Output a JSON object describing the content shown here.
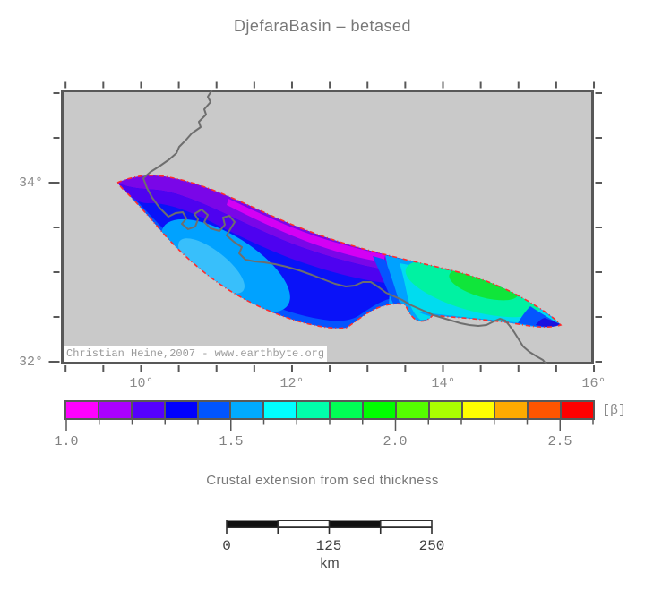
{
  "title": "DjefaraBasin – betased",
  "map": {
    "background": "#c9c9c9",
    "frame_color": "#585858",
    "coast_color": "#6e6e6e",
    "outline_color": "#ff2d2d",
    "x_tick_labels": [
      "10°",
      "12°",
      "14°",
      "16°"
    ],
    "y_tick_labels": [
      "34°",
      "32°"
    ],
    "watermark": "Christian Heine,2007 - www.earthbyte.org",
    "zone_colors": {
      "magenta": "#d400f4",
      "purple": "#7a06e8",
      "violet": "#4e02f0",
      "blue": "#0a12f8",
      "royal": "#0455ff",
      "sky": "#00a2ff",
      "sky_light": "#38bffb",
      "cyan": "#00dcef",
      "spring": "#00f2a2",
      "green": "#10e53a",
      "tip_blue": "#1a10e0"
    }
  },
  "colorbar": {
    "unit": "[β]",
    "labels": [
      "1.0",
      "1.5",
      "2.0",
      "2.5"
    ],
    "colors": [
      "#ff00ff",
      "#aa00ff",
      "#5500ff",
      "#0000ff",
      "#0055ff",
      "#00aaff",
      "#00ffff",
      "#00ffaa",
      "#00ff55",
      "#00ff00",
      "#55ff00",
      "#aaff00",
      "#ffff00",
      "#ffaa00",
      "#ff5500",
      "#ff0000"
    ]
  },
  "caption": "Crustal extension from sed thickness",
  "scalebar": {
    "labels": [
      "0",
      "125",
      "250"
    ],
    "unit": "km"
  },
  "chart_data": {
    "type": "heatmap",
    "title": "DjefaraBasin – betased",
    "caption": "Crustal extension from sed thickness",
    "x_tick_labels_deg": [
      10,
      12,
      14,
      16
    ],
    "y_tick_labels_deg": [
      34,
      32
    ],
    "lon_range_deg": [
      9.0,
      16.0
    ],
    "lat_range_deg": [
      31.9,
      35.05
    ],
    "colorbar": {
      "label": "[β]",
      "range": [
        1.0,
        2.6
      ],
      "ticks": [
        1.0,
        1.5,
        2.0,
        2.5
      ],
      "n_segments": 16
    },
    "scale_bar_km": {
      "ticks": [
        0,
        125,
        250
      ],
      "unit": "km"
    },
    "regions": [
      {
        "name": "northeast margin streak",
        "beta": "≈1.0–1.1",
        "color": "magenta"
      },
      {
        "name": "northern band of western lobe",
        "beta": "≈1.1–1.3",
        "color": "purple-violet"
      },
      {
        "name": "central western lobe",
        "beta": "≈1.3–1.5",
        "color": "blue"
      },
      {
        "name": "southwestern patch",
        "beta": "≈1.5–1.6",
        "color": "light blue"
      },
      {
        "name": "eastern lobe",
        "beta": "≈1.6–1.8",
        "color": "cyan / spring green"
      },
      {
        "name": "eastern lobe core",
        "beta": "≈1.9–2.0",
        "color": "green"
      },
      {
        "name": "eastern tip",
        "beta": "≈1.3–1.5",
        "color": "royal blue"
      }
    ]
  }
}
